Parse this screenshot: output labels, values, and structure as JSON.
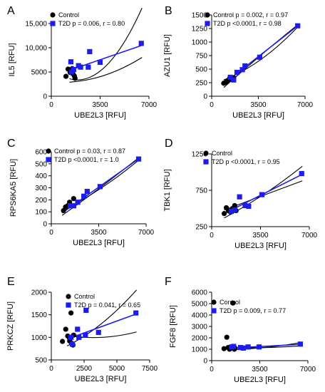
{
  "colors": {
    "control": "#000000",
    "t2d": "#1c1cf0",
    "band": "#000000"
  },
  "chart_data": [
    {
      "type": "scatter",
      "letter": "A",
      "xlabel": "UBE2L3 [RFU]",
      "ylabel": "IL5 [RFU]",
      "xlim": [
        0,
        7000
      ],
      "ylim": [
        0,
        15000
      ],
      "xticks": [
        "0",
        "3500",
        "7000"
      ],
      "yticks": [
        "0",
        "5000",
        "10,000",
        "15,000"
      ],
      "series": [
        {
          "name": "Control",
          "marker": "circle",
          "points": [
            [
              1050,
              4100
            ],
            [
              1200,
              5600
            ],
            [
              1350,
              4900
            ],
            [
              1500,
              5700
            ],
            [
              1550,
              4600
            ],
            [
              1650,
              4200
            ],
            [
              1700,
              3700
            ]
          ]
        },
        {
          "name": "T2D",
          "marker": "square",
          "stats": "p = 0.006, r = 0.80",
          "points": [
            [
              1400,
              7100
            ],
            [
              1450,
              5000
            ],
            [
              1600,
              5500
            ],
            [
              1950,
              6300
            ],
            [
              2100,
              6000
            ],
            [
              2650,
              6000
            ],
            [
              2750,
              9200
            ],
            [
              3500,
              7000
            ],
            [
              6450,
              10900
            ]
          ]
        }
      ],
      "fit": {
        "x": [
          1300,
          6500
        ],
        "y": [
          5350,
          10500
        ],
        "band": [
          [
            3600,
            6200,
            18200
          ],
          [
            2900,
            4400,
            8000
          ]
        ]
      }
    },
    {
      "type": "scatter",
      "letter": "B",
      "xlabel": "UBE2L3 [RFU]",
      "ylabel": "AZU1 [RFU]",
      "xlim": [
        0,
        7000
      ],
      "ylim": [
        0,
        1500
      ],
      "xticks": [
        "0",
        "3500",
        "7000"
      ],
      "yticks": [
        "0",
        "250",
        "500",
        "750",
        "1000",
        "1250",
        "1500"
      ],
      "series": [
        {
          "name": "Control",
          "marker": "circle",
          "stats": "p = 0.002, r = 0.97",
          "points": [
            [
              900,
              240
            ],
            [
              1050,
              255
            ],
            [
              1200,
              280
            ],
            [
              1350,
              330
            ],
            [
              1500,
              310
            ],
            [
              1650,
              340
            ]
          ]
        },
        {
          "name": "T2D",
          "marker": "square",
          "stats": "p <0.0001, r = 0.98",
          "points": [
            [
              1400,
              350
            ],
            [
              1650,
              300
            ],
            [
              1900,
              440
            ],
            [
              2300,
              490
            ],
            [
              2500,
              560
            ],
            [
              3600,
              720
            ],
            [
              6450,
              1300
            ]
          ]
        }
      ],
      "fit": {
        "x": [
          900,
          6500
        ],
        "y": [
          230,
          1310
        ],
        "band": [
          [
            160,
            760,
            1330
          ],
          [
            300,
            680,
            1290
          ]
        ]
      }
    },
    {
      "type": "scatter",
      "letter": "C",
      "xlabel": "UBE2L3 [RFU]",
      "ylabel": "RPS6KA5 [RFU]",
      "xlim": [
        0,
        7000
      ],
      "ylim": [
        0,
        600
      ],
      "xticks": [
        "0",
        "3500",
        "7000"
      ],
      "yticks": [
        "0",
        "100",
        "200",
        "300",
        "400",
        "500",
        "600"
      ],
      "series": [
        {
          "name": "Control",
          "marker": "circle",
          "stats": "p = 0.03, r = 0.87",
          "points": [
            [
              900,
              110
            ],
            [
              1050,
              140
            ],
            [
              1200,
              150
            ],
            [
              1350,
              180
            ],
            [
              1500,
              150
            ],
            [
              1650,
              210
            ]
          ]
        },
        {
          "name": "T2D",
          "marker": "square",
          "stats": "p <0.0001, r = 1.0",
          "points": [
            [
              1400,
              150
            ],
            [
              1650,
              150
            ],
            [
              1950,
              180
            ],
            [
              2400,
              230
            ],
            [
              2650,
              270
            ],
            [
              3600,
              310
            ],
            [
              6450,
              540
            ]
          ]
        }
      ],
      "fit": {
        "x": [
          800,
          6500
        ],
        "y": [
          90,
          545
        ],
        "band": [
          [
            70,
            305,
            555
          ],
          [
            110,
            295,
            535
          ]
        ]
      }
    },
    {
      "type": "scatter",
      "letter": "D",
      "xlabel": "UBE2L3 [RFU]",
      "ylabel": "TBK1 [RFU]",
      "xlim": [
        0,
        7000
      ],
      "ylim": [
        250,
        1250
      ],
      "xticks": [
        "0",
        "3500",
        "7000"
      ],
      "yticks": [
        "250",
        "750",
        "1250"
      ],
      "series": [
        {
          "name": "Control",
          "marker": "circle",
          "points": [
            [
              900,
              430
            ],
            [
              1050,
              510
            ],
            [
              1200,
              470
            ],
            [
              1350,
              450
            ],
            [
              1500,
              500
            ],
            [
              1650,
              540
            ],
            [
              1750,
              470
            ]
          ]
        },
        {
          "name": "T2D",
          "marker": "square",
          "stats": "p <0.0001, r = 0.95",
          "points": [
            [
              1400,
              460
            ],
            [
              1650,
              480
            ],
            [
              2000,
              660
            ],
            [
              2400,
              540
            ],
            [
              2650,
              530
            ],
            [
              3600,
              690
            ],
            [
              6450,
              980
            ]
          ]
        }
      ],
      "fit": {
        "x": [
          900,
          6500
        ],
        "y": [
          430,
          970
        ],
        "band": [
          [
            370,
            690,
            1080
          ],
          [
            480,
            680,
            880
          ]
        ]
      }
    },
    {
      "type": "scatter",
      "letter": "E",
      "xlabel": "UBE2L3 [RFU]",
      "ylabel": "PRKCZ [RFU]",
      "xlim": [
        0,
        7500
      ],
      "ylim": [
        500,
        2000
      ],
      "xticks": [
        "0",
        "2500",
        "5000",
        "7500"
      ],
      "yticks": [
        "500",
        "1000",
        "1500",
        "2000"
      ],
      "series": [
        {
          "name": "Control",
          "marker": "circle",
          "points": [
            [
              850,
              910
            ],
            [
              1100,
              1180
            ],
            [
              1250,
              1030
            ],
            [
              1400,
              920
            ],
            [
              1500,
              1540
            ],
            [
              1550,
              870
            ],
            [
              1650,
              830
            ],
            [
              1700,
              1050
            ]
          ]
        },
        {
          "name": "T2D",
          "marker": "square",
          "stats": "p = 0.041, r = 0.65",
          "points": [
            [
              1500,
              1000
            ],
            [
              1600,
              850
            ],
            [
              2000,
              1180
            ],
            [
              2100,
              1000
            ],
            [
              2600,
              1050
            ],
            [
              2650,
              1600
            ],
            [
              3600,
              1110
            ],
            [
              6450,
              1540
            ]
          ]
        }
      ],
      "fit": {
        "x": [
          1200,
          6500
        ],
        "y": [
          960,
          1520
        ],
        "band": [
          [
            810,
            1310,
            2050
          ],
          [
            1040,
            1000,
            1120
          ]
        ]
      }
    },
    {
      "type": "scatter",
      "letter": "F",
      "xlabel": "UBE2L3 [RFU]",
      "ylabel": "FGF8 [RFU]",
      "xlim": [
        0,
        7000
      ],
      "ylim": [
        0,
        6000
      ],
      "xticks": [
        "0",
        "3500",
        "7000"
      ],
      "yticks": [
        "0",
        "1000",
        "2000",
        "3000",
        "4000",
        "5000",
        "6000"
      ],
      "series": [
        {
          "name": "Control",
          "marker": "circle",
          "points": [
            [
              900,
              1050
            ],
            [
              1100,
              2050
            ],
            [
              1200,
              1150
            ],
            [
              1300,
              1000
            ],
            [
              1400,
              1100
            ],
            [
              1550,
              5050
            ],
            [
              1650,
              1000
            ],
            [
              1700,
              1100
            ]
          ]
        },
        {
          "name": "T2D",
          "marker": "square",
          "stats": "p = 0.009, r = 0.77",
          "points": [
            [
              1450,
              1200
            ],
            [
              1600,
              1250
            ],
            [
              2100,
              1150
            ],
            [
              2300,
              1100
            ],
            [
              2650,
              1200
            ],
            [
              3450,
              1200
            ],
            [
              6450,
              1450
            ]
          ]
        }
      ],
      "fit": {
        "x": [
          1200,
          6500
        ],
        "y": [
          1090,
          1430
        ],
        "band": [
          [
            960,
            1150,
            1580
          ],
          [
            1130,
            1140,
            1290
          ]
        ]
      }
    }
  ]
}
